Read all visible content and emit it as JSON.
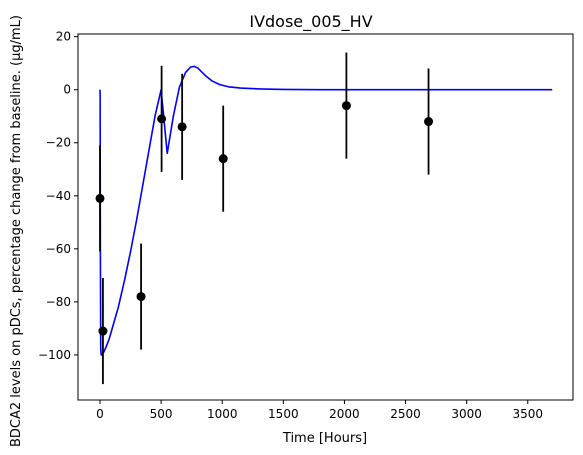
{
  "chart_data": {
    "type": "scatter",
    "title": "IVdose_005_HV",
    "xlabel": "Time [Hours]",
    "ylabel": "BDCA2 levels on pDCs, percentage change from baseline. (µg/mL)",
    "xlim": [
      -180,
      3870
    ],
    "ylim": [
      -117,
      21
    ],
    "xticks": [
      0,
      500,
      1000,
      1500,
      2000,
      2500,
      3000,
      3500
    ],
    "yticks": [
      -100,
      -80,
      -60,
      -40,
      -20,
      0,
      20
    ],
    "grid": false,
    "series": [
      {
        "kind": "observed",
        "color": "#000000",
        "marker": "circle",
        "points": [
          {
            "x": 0,
            "y": -41,
            "err": 20
          },
          {
            "x": 24,
            "y": -91,
            "err": 20
          },
          {
            "x": 336,
            "y": -78,
            "err": 20
          },
          {
            "x": 504,
            "y": -11,
            "err": 20
          },
          {
            "x": 672,
            "y": -14,
            "err": 20
          },
          {
            "x": 1008,
            "y": -26,
            "err": 20
          },
          {
            "x": 2016,
            "y": -6,
            "err": 20
          },
          {
            "x": 2688,
            "y": -12,
            "err": 20
          }
        ]
      },
      {
        "kind": "model",
        "color": "#0000ff",
        "line": true,
        "x": [
          0,
          1,
          3,
          6,
          10,
          15,
          20,
          30,
          50,
          75,
          100,
          150,
          200,
          250,
          300,
          350,
          400,
          450,
          500,
          550,
          600,
          650,
          700,
          740,
          770,
          800,
          830,
          870,
          920,
          980,
          1050,
          1150,
          1300,
          1500,
          1800,
          2100,
          2400,
          2700,
          3000,
          3300,
          3700
        ],
        "y": [
          0,
          -2,
          -60,
          -98,
          -100,
          -100,
          -99.5,
          -99,
          -97,
          -94,
          -90,
          -82,
          -72,
          -61,
          -49,
          -36,
          -23,
          -10,
          0,
          -24,
          -10,
          1,
          6.5,
          8.5,
          8.8,
          8.2,
          6.8,
          5,
          3.2,
          1.9,
          1.1,
          0.6,
          0.3,
          0.1,
          0,
          0,
          0,
          0,
          0,
          0,
          0
        ]
      }
    ]
  }
}
